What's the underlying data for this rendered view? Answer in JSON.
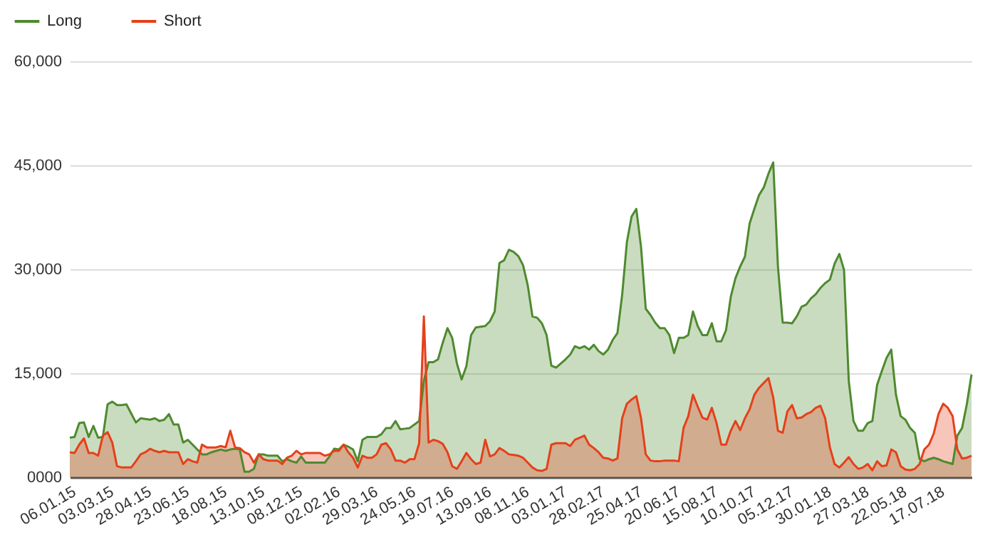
{
  "chart_data": {
    "type": "area",
    "x": [
      "2015-01-06",
      "2015-01-13",
      "2015-01-20",
      "2015-01-27",
      "2015-02-03",
      "2015-02-10",
      "2015-02-17",
      "2015-02-24",
      "2015-03-03",
      "2015-03-10",
      "2015-03-17",
      "2015-03-24",
      "2015-03-31",
      "2015-04-07",
      "2015-04-14",
      "2015-04-21",
      "2015-04-28",
      "2015-05-05",
      "2015-05-12",
      "2015-05-19",
      "2015-05-26",
      "2015-06-02",
      "2015-06-09",
      "2015-06-16",
      "2015-06-23",
      "2015-06-30",
      "2015-07-07",
      "2015-07-14",
      "2015-07-21",
      "2015-07-28",
      "2015-08-04",
      "2015-08-11",
      "2015-08-18",
      "2015-08-25",
      "2015-09-01",
      "2015-09-08",
      "2015-09-15",
      "2015-09-22",
      "2015-09-29",
      "2015-10-06",
      "2015-10-13",
      "2015-10-20",
      "2015-10-27",
      "2015-11-03",
      "2015-11-10",
      "2015-11-17",
      "2015-11-24",
      "2015-12-01",
      "2015-12-08",
      "2015-12-15",
      "2015-12-22",
      "2015-12-29",
      "2016-01-05",
      "2016-01-12",
      "2016-01-19",
      "2016-01-26",
      "2016-02-02",
      "2016-02-09",
      "2016-02-16",
      "2016-02-23",
      "2016-03-01",
      "2016-03-08",
      "2016-03-15",
      "2016-03-22",
      "2016-03-29",
      "2016-04-05",
      "2016-04-12",
      "2016-04-19",
      "2016-04-26",
      "2016-05-03",
      "2016-05-10",
      "2016-05-17",
      "2016-05-24",
      "2016-05-31",
      "2016-06-07",
      "2016-06-14",
      "2016-06-21",
      "2016-06-28",
      "2016-07-05",
      "2016-07-12",
      "2016-07-19",
      "2016-07-26",
      "2016-08-02",
      "2016-08-09",
      "2016-08-16",
      "2016-08-23",
      "2016-08-30",
      "2016-09-06",
      "2016-09-13",
      "2016-09-20",
      "2016-09-27",
      "2016-10-04",
      "2016-10-11",
      "2016-10-18",
      "2016-10-25",
      "2016-11-01",
      "2016-11-08",
      "2016-11-15",
      "2016-11-22",
      "2016-11-29",
      "2016-12-06",
      "2016-12-13",
      "2016-12-20",
      "2016-12-27",
      "2017-01-03",
      "2017-01-10",
      "2017-01-17",
      "2017-01-24",
      "2017-01-31",
      "2017-02-07",
      "2017-02-14",
      "2017-02-21",
      "2017-02-28",
      "2017-03-07",
      "2017-03-14",
      "2017-03-21",
      "2017-03-28",
      "2017-04-04",
      "2017-04-11",
      "2017-04-18",
      "2017-04-25",
      "2017-05-02",
      "2017-05-09",
      "2017-05-16",
      "2017-05-23",
      "2017-05-30",
      "2017-06-06",
      "2017-06-13",
      "2017-06-20",
      "2017-06-27",
      "2017-07-04",
      "2017-07-11",
      "2017-07-18",
      "2017-07-25",
      "2017-08-01",
      "2017-08-08",
      "2017-08-15",
      "2017-08-22",
      "2017-08-29",
      "2017-09-05",
      "2017-09-12",
      "2017-09-19",
      "2017-09-26",
      "2017-10-03",
      "2017-10-10",
      "2017-10-17",
      "2017-10-24",
      "2017-10-31",
      "2017-11-07",
      "2017-11-14",
      "2017-11-21",
      "2017-11-28",
      "2017-12-05",
      "2017-12-12",
      "2017-12-19",
      "2017-12-26",
      "2018-01-02",
      "2018-01-09",
      "2018-01-16",
      "2018-01-23",
      "2018-01-30",
      "2018-02-06",
      "2018-02-13",
      "2018-02-20",
      "2018-02-27",
      "2018-03-06",
      "2018-03-13",
      "2018-03-20",
      "2018-03-27",
      "2018-04-03",
      "2018-04-10",
      "2018-04-17",
      "2018-04-24",
      "2018-05-01",
      "2018-05-08",
      "2018-05-15",
      "2018-05-22",
      "2018-05-29",
      "2018-06-05",
      "2018-06-12",
      "2018-06-19",
      "2018-06-26",
      "2018-07-03",
      "2018-07-10",
      "2018-07-17",
      "2018-07-24",
      "2018-07-31",
      "2018-08-07",
      "2018-08-14",
      "2018-08-21",
      "2018-08-28",
      "2018-09-04"
    ],
    "series": [
      {
        "name": "Long",
        "color": "#4e8a2e",
        "values": [
          5700,
          5800,
          7800,
          7900,
          5800,
          7400,
          5700,
          5800,
          10500,
          10900,
          10400,
          10400,
          10500,
          9200,
          7900,
          8500,
          8400,
          8300,
          8500,
          8100,
          8300,
          9100,
          7600,
          7600,
          5000,
          5400,
          4700,
          4000,
          3300,
          3300,
          3600,
          3800,
          4000,
          3800,
          4000,
          4100,
          4000,
          800,
          800,
          1200,
          3300,
          3300,
          3100,
          3100,
          3100,
          2300,
          2600,
          2300,
          2100,
          3000,
          2100,
          2100,
          2100,
          2100,
          2100,
          3000,
          4100,
          4000,
          4700,
          4400,
          4000,
          2300,
          5400,
          5800,
          5800,
          5800,
          6200,
          7100,
          7100,
          8100,
          6900,
          7000,
          7100,
          7600,
          8100,
          13900,
          16600,
          16600,
          17000,
          19400,
          21500,
          20100,
          16400,
          14100,
          16000,
          20500,
          21600,
          21700,
          21800,
          22500,
          23900,
          30900,
          31300,
          32800,
          32500,
          31900,
          30600,
          27700,
          23200,
          23000,
          22200,
          20500,
          16100,
          15800,
          16400,
          17000,
          17700,
          18900,
          18600,
          18900,
          18400,
          19100,
          18200,
          17700,
          18400,
          19800,
          20800,
          26300,
          33900,
          37600,
          38700,
          33200,
          24300,
          23400,
          22300,
          21500,
          21500,
          20500,
          17900,
          20100,
          20100,
          20500,
          23900,
          21800,
          20500,
          20500,
          22200,
          19600,
          19600,
          21200,
          26000,
          28700,
          30400,
          31800,
          36600,
          38700,
          40700,
          41800,
          43800,
          45400,
          30400,
          22300,
          22300,
          22200,
          23200,
          24600,
          24900,
          25800,
          26400,
          27300,
          28000,
          28500,
          30800,
          32200,
          29900,
          13900,
          8100,
          6700,
          6700,
          7800,
          8100,
          13300,
          15300,
          17200,
          18400,
          11900,
          8800,
          8300,
          7100,
          6400,
          2600,
          2300,
          2600,
          2800,
          2600,
          2300,
          2100,
          1900,
          6000,
          7100,
          10500,
          14800
        ]
      },
      {
        "name": "Short",
        "color": "#e5401a",
        "values": [
          3600,
          3500,
          4700,
          5600,
          3500,
          3500,
          3100,
          6000,
          6500,
          5000,
          1600,
          1400,
          1400,
          1400,
          2300,
          3300,
          3600,
          4100,
          3800,
          3600,
          3800,
          3600,
          3600,
          3600,
          1900,
          2600,
          2300,
          2100,
          4700,
          4300,
          4300,
          4300,
          4500,
          4300,
          6700,
          4300,
          4200,
          3600,
          3300,
          2100,
          3300,
          2600,
          2400,
          2400,
          2400,
          1900,
          2800,
          3100,
          3800,
          3300,
          3500,
          3500,
          3500,
          3500,
          3100,
          3300,
          3800,
          3800,
          4700,
          3600,
          2800,
          1400,
          3100,
          2800,
          2800,
          3300,
          4700,
          4900,
          4000,
          2400,
          2400,
          2100,
          2600,
          2600,
          4900,
          23200,
          5000,
          5400,
          5200,
          4800,
          3600,
          1600,
          1200,
          2300,
          3500,
          2600,
          1900,
          2100,
          5400,
          3000,
          3300,
          4200,
          3800,
          3300,
          3200,
          3100,
          2800,
          2100,
          1400,
          1000,
          900,
          1200,
          4700,
          4900,
          4900,
          4900,
          4500,
          5400,
          5700,
          6000,
          4700,
          4200,
          3600,
          2800,
          2700,
          2400,
          2700,
          8500,
          10600,
          11200,
          11700,
          8500,
          3300,
          2400,
          2300,
          2300,
          2400,
          2400,
          2400,
          2300,
          7100,
          8800,
          11900,
          10200,
          8600,
          8300,
          10000,
          7800,
          4700,
          4700,
          6700,
          8100,
          6800,
          8500,
          9800,
          11900,
          12900,
          13600,
          14300,
          11500,
          6700,
          6400,
          9500,
          10400,
          8500,
          8600,
          9100,
          9400,
          10000,
          10300,
          8500,
          4300,
          1900,
          1400,
          2100,
          2900,
          1900,
          1200,
          1400,
          1900,
          1000,
          2300,
          1600,
          1700,
          4000,
          3600,
          1600,
          1100,
          1000,
          1200,
          1900,
          4000,
          4700,
          6300,
          9100,
          10600,
          10000,
          8800,
          4000,
          2700,
          2800,
          3100
        ]
      }
    ],
    "xlim": [
      "2015-01-06",
      "2018-09-04"
    ],
    "xticks": [
      {
        "value": "2015-01-06",
        "label": "06.01.15"
      },
      {
        "value": "2015-03-03",
        "label": "03.03.15"
      },
      {
        "value": "2015-04-28",
        "label": "28.04.15"
      },
      {
        "value": "2015-06-23",
        "label": "23.06.15"
      },
      {
        "value": "2015-08-18",
        "label": "18.08.15"
      },
      {
        "value": "2015-10-13",
        "label": "13.10.15"
      },
      {
        "value": "2015-12-08",
        "label": "08.12.15"
      },
      {
        "value": "2016-02-02",
        "label": "02.02.16"
      },
      {
        "value": "2016-03-29",
        "label": "29.03.16"
      },
      {
        "value": "2016-05-24",
        "label": "24.05.16"
      },
      {
        "value": "2016-07-19",
        "label": "19.07.16"
      },
      {
        "value": "2016-09-13",
        "label": "13.09.16"
      },
      {
        "value": "2016-11-08",
        "label": "08.11.16"
      },
      {
        "value": "2017-01-03",
        "label": "03.01.17"
      },
      {
        "value": "2017-02-28",
        "label": "28.02.17"
      },
      {
        "value": "2017-04-25",
        "label": "25.04.17"
      },
      {
        "value": "2017-06-20",
        "label": "20.06.17"
      },
      {
        "value": "2017-08-15",
        "label": "15.08.17"
      },
      {
        "value": "2017-10-10",
        "label": "10.10.17"
      },
      {
        "value": "2017-12-05",
        "label": "05.12.17"
      },
      {
        "value": "2018-01-30",
        "label": "30.01.18"
      },
      {
        "value": "2018-03-27",
        "label": "27.03.18"
      },
      {
        "value": "2018-05-22",
        "label": "22.05.18"
      },
      {
        "value": "2018-07-17",
        "label": "17.07.18"
      }
    ],
    "ylim": [
      0,
      60000
    ],
    "yticks": [
      {
        "value": 0,
        "label": "0000"
      },
      {
        "value": 15000,
        "label": "15,000"
      },
      {
        "value": 30000,
        "label": "30,000"
      },
      {
        "value": 45000,
        "label": "45,000"
      },
      {
        "value": 60000,
        "label": "60,000"
      }
    ],
    "grid": "y",
    "legend": "top left"
  }
}
